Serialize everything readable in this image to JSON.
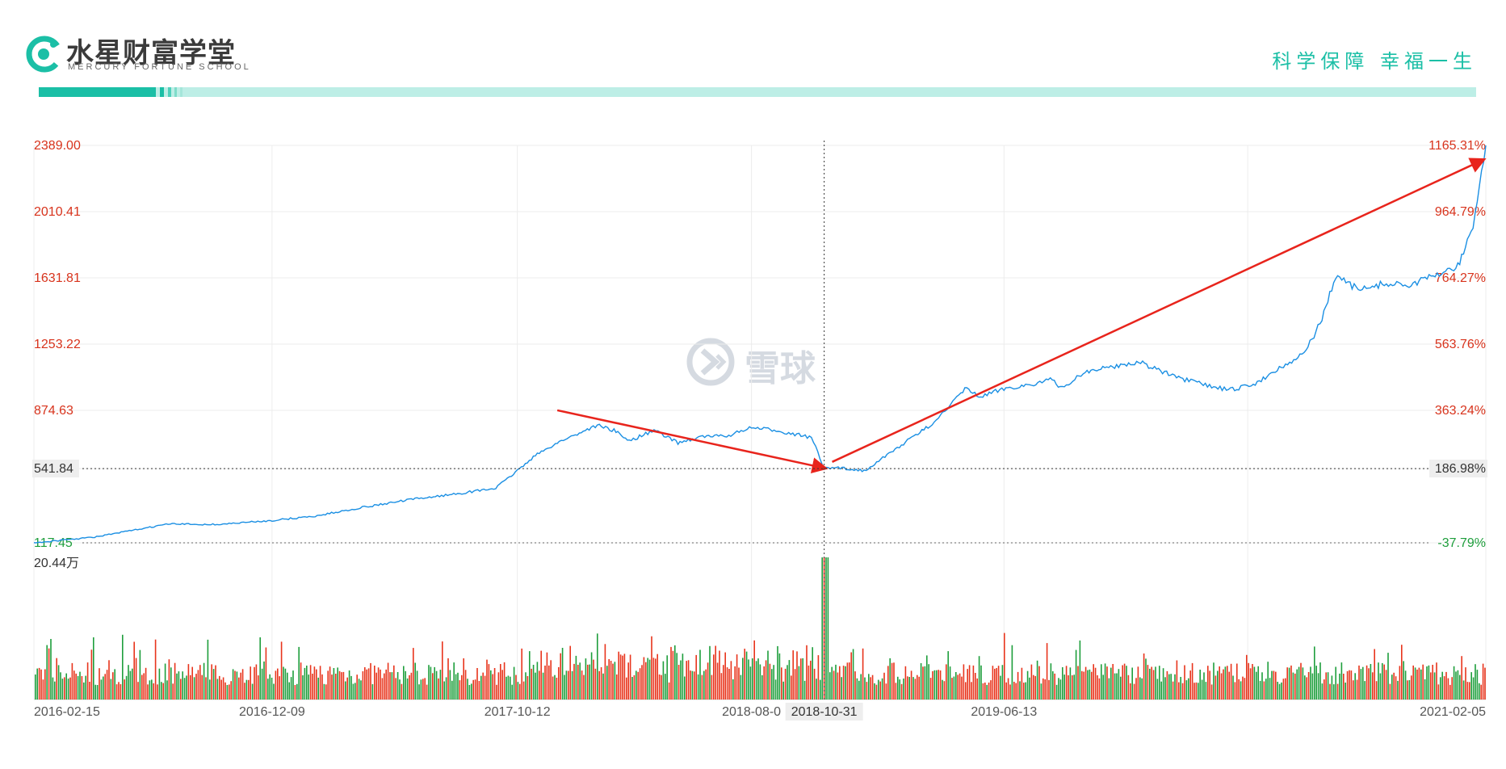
{
  "header": {
    "brand_cn": "水星财富学堂",
    "brand_en": "MERCURY FORTUNE SCHOOL",
    "slogan": "科学保障 幸福一生",
    "colors": {
      "accent": "#1bbfa6",
      "accent_light": "#bdeee6"
    }
  },
  "watermark": {
    "text": "雪球",
    "icon": "snowball-logo-icon"
  },
  "chart_data": {
    "type": "line",
    "y_left": {
      "ticks": [
        "2389.00",
        "2010.41",
        "1631.81",
        "1253.22",
        "874.63",
        "541.84",
        "117.45"
      ],
      "tick_values": [
        2389.0,
        2010.41,
        1631.81,
        1253.22,
        874.63,
        541.84,
        117.45
      ],
      "range": [
        117.45,
        2389.0
      ]
    },
    "y_right": {
      "ticks": [
        "1165.31%",
        "964.79%",
        "764.27%",
        "563.76%",
        "363.24%",
        "186.98%",
        "-37.79%"
      ],
      "range": [
        -37.79,
        1165.31
      ]
    },
    "volume": {
      "max_label": "20.44万",
      "up_color": "#e8341c",
      "down_color": "#1e9e3c"
    },
    "x_ticks": [
      "2016-02-15",
      "2016-12-09",
      "2017-10-12",
      "2018-08-0",
      "2019-06-13",
      "2021-02-05"
    ],
    "crosshair": {
      "date": "2018-10-31",
      "price": "541.84",
      "pct": "186.98%"
    },
    "line_color": "#1a8fe3",
    "series": [
      {
        "x": [
          "2016-02-15",
          "2016-05-01",
          "2016-08-01",
          "2016-10-01",
          "2016-12-09",
          "2017-02-01",
          "2017-04-01",
          "2017-06-01",
          "2017-08-01",
          "2017-09-15",
          "2017-10-12",
          "2017-11-01",
          "2017-12-01",
          "2018-01-20",
          "2018-02-10",
          "2018-03-01",
          "2018-04-01",
          "2018-05-01",
          "2018-06-01",
          "2018-07-01",
          "2018-08-01",
          "2018-09-01",
          "2018-10-15",
          "2018-10-31",
          "2018-11-20",
          "2018-12-20",
          "2019-01-15",
          "2019-02-15",
          "2019-03-10",
          "2019-04-05",
          "2019-04-25",
          "2019-05-15",
          "2019-06-13",
          "2019-07-15",
          "2019-08-10",
          "2019-08-25",
          "2019-09-20",
          "2019-11-01",
          "2019-12-01",
          "2020-01-15",
          "2020-02-20",
          "2020-03-20",
          "2020-04-20",
          "2020-05-20",
          "2020-06-20",
          "2020-07-05",
          "2020-07-15",
          "2020-08-01",
          "2020-09-01",
          "2020-10-01",
          "2020-11-01",
          "2020-12-01",
          "2021-01-01",
          "2021-01-20",
          "2021-02-05"
        ],
        "values": [
          117,
          150,
          225,
          222,
          245,
          270,
          320,
          365,
          400,
          430,
          530,
          608,
          690,
          790,
          760,
          700,
          760,
          690,
          725,
          728,
          775,
          760,
          720,
          541,
          545,
          530,
          610,
          710,
          780,
          890,
          1000,
          950,
          1000,
          1020,
          1050,
          1000,
          1090,
          1130,
          1150,
          1060,
          1020,
          990,
          1020,
          1110,
          1190,
          1300,
          1400,
          1640,
          1560,
          1600,
          1590,
          1640,
          1700,
          1920,
          2389
        ]
      }
    ],
    "annotations": [
      {
        "type": "arrow",
        "from_date": "2017-12-01",
        "from_value": 875,
        "to_date": "2018-10-31",
        "to_value": 545,
        "color": "#e8241c"
      },
      {
        "type": "arrow",
        "from_date": "2018-11-10",
        "from_value": 580,
        "to_date": "2021-02-01",
        "to_value": 2305,
        "color": "#e8241c"
      }
    ]
  }
}
